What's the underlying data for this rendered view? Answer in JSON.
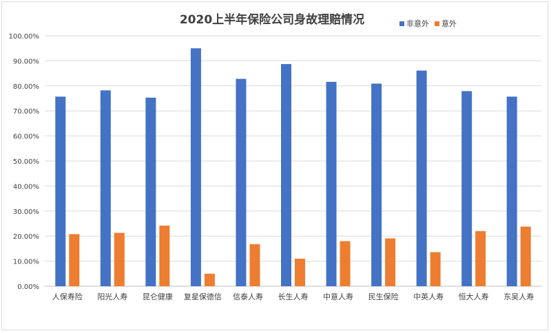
{
  "chart_data": {
    "type": "bar",
    "title": "2020上半年保险公司身故理赔情况",
    "xlabel": "",
    "ylabel": "",
    "ylim": [
      0,
      100
    ],
    "yticks": [
      "0.00%",
      "10.00%",
      "20.00%",
      "30.00%",
      "40.00%",
      "50.00%",
      "60.00%",
      "70.00%",
      "80.00%",
      "90.00%",
      "100.00%"
    ],
    "categories": [
      "人保寿险",
      "阳光人寿",
      "昆仑健康",
      "复星保德信",
      "信泰人寿",
      "长生人寿",
      "中意人寿",
      "民生保险",
      "中英人寿",
      "恒大人寿",
      "东吴人寿"
    ],
    "series": [
      {
        "name": "非意外",
        "color": "#4472c4",
        "values": [
          75.7,
          78.2,
          75.3,
          95.0,
          82.8,
          88.7,
          81.6,
          80.9,
          86.1,
          77.9,
          75.7
        ]
      },
      {
        "name": "意外",
        "color": "#ed7d31",
        "values": [
          20.8,
          21.3,
          24.2,
          5.0,
          16.8,
          11.0,
          18.0,
          19.1,
          13.6,
          22.0,
          23.8
        ]
      }
    ],
    "grid": true,
    "legend_position": "top-right"
  }
}
